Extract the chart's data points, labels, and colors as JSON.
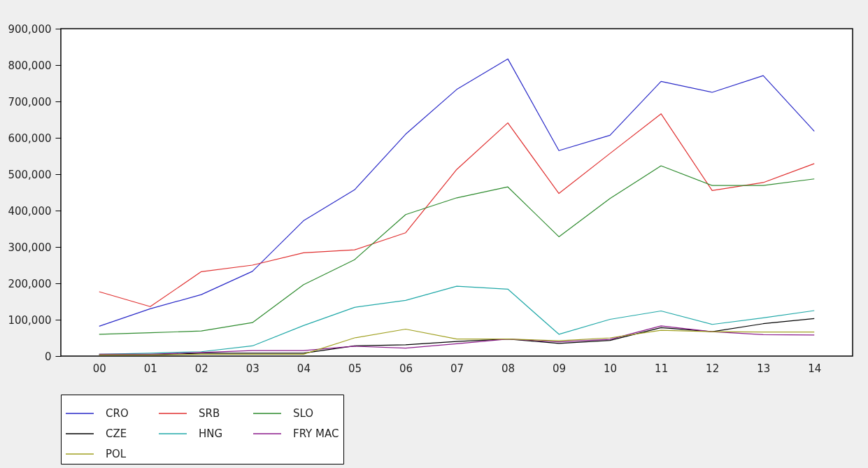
{
  "chart_data": {
    "type": "line",
    "categories": [
      "00",
      "01",
      "02",
      "03",
      "04",
      "05",
      "06",
      "07",
      "08",
      "09",
      "10",
      "11",
      "12",
      "13",
      "14"
    ],
    "series": [
      {
        "name": "CRO",
        "color": "#2a2ac8",
        "values": [
          82000,
          130000,
          169000,
          233000,
          372000,
          457000,
          610000,
          733000,
          817000,
          565000,
          607000,
          755000,
          725000,
          771000,
          618000
        ]
      },
      {
        "name": "SRB",
        "color": "#e03030",
        "values": [
          177000,
          136000,
          232000,
          250000,
          284000,
          292000,
          339000,
          513000,
          641000,
          447000,
          557000,
          666000,
          455000,
          477000,
          529000
        ]
      },
      {
        "name": "SLO",
        "color": "#2e8b2e",
        "values": [
          60000,
          64000,
          69000,
          92000,
          196000,
          265000,
          389000,
          435000,
          465000,
          328000,
          433000,
          523000,
          469000,
          469000,
          487000
        ]
      },
      {
        "name": "CZE",
        "color": "#000000",
        "values": [
          3000,
          3000,
          8000,
          8000,
          8000,
          28000,
          31000,
          40000,
          47000,
          35000,
          43000,
          78000,
          67000,
          89000,
          103000
        ]
      },
      {
        "name": "HNG",
        "color": "#20a8a8",
        "values": [
          5000,
          8000,
          12000,
          28000,
          84000,
          134000,
          153000,
          192000,
          184000,
          60000,
          101000,
          124000,
          87000,
          105000,
          125000
        ]
      },
      {
        "name": "FRY MAC",
        "color": "#8b1a8b",
        "values": [
          5000,
          5000,
          10000,
          15000,
          15000,
          27000,
          22000,
          34000,
          47000,
          39000,
          46000,
          83000,
          67000,
          59000,
          58000
        ]
      },
      {
        "name": "POL",
        "color": "#a0a020",
        "values": [
          3000,
          3000,
          5000,
          5000,
          5000,
          50000,
          74000,
          47000,
          47000,
          42000,
          50000,
          71000,
          67000,
          66000,
          66000
        ]
      }
    ],
    "ylim": [
      0,
      900000
    ],
    "yticks": [
      0,
      {
        "value": 100000,
        "label": "100,000"
      },
      {
        "value": 200000,
        "label": "200,000"
      },
      {
        "value": 300000,
        "label": "300,000"
      },
      {
        "value": 400000,
        "label": "400,000"
      },
      {
        "value": 500000,
        "label": "500,000"
      },
      {
        "value": 600000,
        "label": "600,000"
      },
      {
        "value": 700000,
        "label": "700,000"
      },
      {
        "value": 800000,
        "label": "800,000"
      },
      {
        "value": 900000,
        "label": "900,000"
      }
    ],
    "grid": false,
    "legend": "bottom",
    "marker": "none",
    "line_style": "solid"
  }
}
